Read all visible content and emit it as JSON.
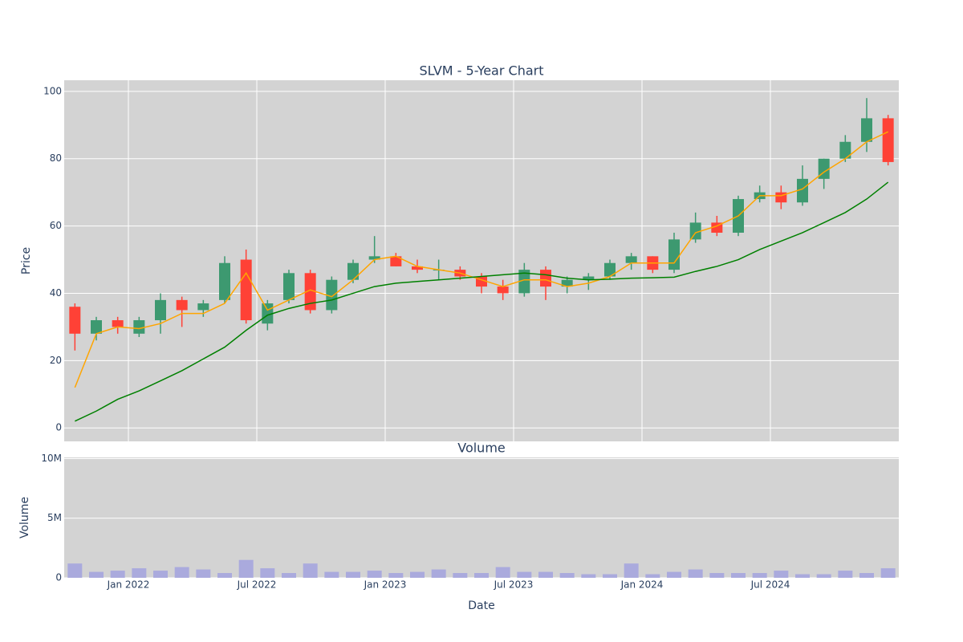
{
  "chart_data": [
    {
      "type": "candlestick",
      "title": "SLVM - 5-Year Chart",
      "ylabel": "Price",
      "x": [
        "2021-10",
        "2021-11",
        "2021-12",
        "2022-01",
        "2022-02",
        "2022-03",
        "2022-04",
        "2022-05",
        "2022-06",
        "2022-07",
        "2022-08",
        "2022-09",
        "2022-10",
        "2022-11",
        "2022-12",
        "2023-01",
        "2023-02",
        "2023-03",
        "2023-04",
        "2023-05",
        "2023-06",
        "2023-07",
        "2023-08",
        "2023-09",
        "2023-10",
        "2023-11",
        "2023-12",
        "2024-01",
        "2024-02",
        "2024-03",
        "2024-04",
        "2024-05",
        "2024-06",
        "2024-07",
        "2024-08",
        "2024-09",
        "2024-10",
        "2024-11",
        "2024-12"
      ],
      "open": [
        36,
        28,
        32,
        28,
        32,
        38,
        35,
        38,
        50,
        31,
        38,
        46,
        35,
        44,
        50,
        51,
        48,
        47,
        47,
        45,
        42,
        40,
        47,
        42,
        44,
        45,
        49,
        51,
        47,
        56,
        61,
        58,
        68,
        70,
        67,
        74,
        80,
        85,
        92
      ],
      "high": [
        37,
        33,
        33,
        33,
        40,
        39,
        38,
        51,
        53,
        38,
        47,
        47,
        45,
        50,
        57,
        52,
        50,
        50,
        48,
        46,
        44,
        49,
        48,
        45,
        46,
        50,
        52,
        51,
        58,
        64,
        63,
        69,
        72,
        72,
        78,
        80,
        87,
        98,
        93
      ],
      "low": [
        23,
        26,
        28,
        27,
        28,
        30,
        33,
        37,
        31,
        29,
        37,
        34,
        34,
        43,
        49,
        48,
        46,
        44,
        44,
        40,
        38,
        39,
        38,
        40,
        41,
        44,
        47,
        46,
        46,
        55,
        57,
        57,
        67,
        65,
        66,
        71,
        79,
        82,
        78
      ],
      "close": [
        28,
        32,
        30,
        32,
        38,
        35,
        37,
        49,
        32,
        37,
        46,
        35,
        44,
        49,
        51,
        48,
        47,
        47,
        45,
        42,
        40,
        47,
        42,
        44,
        45,
        49,
        51,
        47,
        56,
        61,
        58,
        68,
        70,
        67,
        74,
        80,
        85,
        92,
        79
      ],
      "increasing_color": "#3d9970",
      "decreasing_color": "#ff4136",
      "series": [
        {
          "color": "#ffa500",
          "values": [
            12,
            28,
            30,
            29.5,
            31,
            34,
            34,
            37,
            46,
            35,
            38,
            41,
            39,
            44,
            50,
            51,
            48,
            47,
            46,
            44,
            42,
            44,
            44,
            42,
            43,
            45,
            49,
            49,
            49,
            58,
            60,
            63,
            69,
            69,
            71,
            76,
            80,
            85,
            88
          ]
        },
        {
          "color": "#008000",
          "values": [
            2,
            5,
            8.5,
            11,
            14,
            17,
            20.5,
            24,
            29,
            33.5,
            35.5,
            37,
            38,
            40,
            42,
            43,
            43.5,
            44,
            44.5,
            45,
            45.5,
            46,
            45.5,
            44.5,
            44,
            44.2,
            44.5,
            44.6,
            44.8,
            46.5,
            48,
            50,
            53,
            55.5,
            58,
            61,
            64,
            68,
            73
          ]
        }
      ],
      "xlim": [
        "2021-10",
        "2025-01"
      ],
      "xticks": [
        "2022-01",
        "2022-07",
        "2023-01",
        "2023-07",
        "2024-01",
        "2024-07"
      ],
      "ylim": [
        -4,
        103.3
      ],
      "yticks": [
        0,
        20,
        40,
        60,
        80,
        100
      ],
      "grid": true
    },
    {
      "type": "bar",
      "title": "Volume",
      "xlabel": "Date",
      "ylabel": "Volume",
      "x": [
        "2021-10",
        "2021-11",
        "2021-12",
        "2022-01",
        "2022-02",
        "2022-03",
        "2022-04",
        "2022-05",
        "2022-06",
        "2022-07",
        "2022-08",
        "2022-09",
        "2022-10",
        "2022-11",
        "2022-12",
        "2023-01",
        "2023-02",
        "2023-03",
        "2023-04",
        "2023-05",
        "2023-06",
        "2023-07",
        "2023-08",
        "2023-09",
        "2023-10",
        "2023-11",
        "2023-12",
        "2024-01",
        "2024-02",
        "2024-03",
        "2024-04",
        "2024-05",
        "2024-06",
        "2024-07",
        "2024-08",
        "2024-09",
        "2024-10",
        "2024-11",
        "2024-12"
      ],
      "values": [
        1200000,
        500000,
        600000,
        800000,
        600000,
        900000,
        700000,
        400000,
        1500000,
        800000,
        400000,
        1200000,
        500000,
        500000,
        600000,
        400000,
        500000,
        700000,
        400000,
        400000,
        900000,
        500000,
        500000,
        400000,
        300000,
        300000,
        1200000,
        300000,
        500000,
        700000,
        400000,
        400000,
        400000,
        600000,
        300000,
        300000,
        600000,
        400000,
        800000
      ],
      "color": "#aaaadd",
      "xlim": [
        "2021-10",
        "2025-01"
      ],
      "xticks": [
        {
          "value": "2022-01",
          "label": "Jan 2022"
        },
        {
          "value": "2022-07",
          "label": "Jul 2022"
        },
        {
          "value": "2023-01",
          "label": "Jan 2023"
        },
        {
          "value": "2023-07",
          "label": "Jul 2023"
        },
        {
          "value": "2024-01",
          "label": "Jan 2024"
        },
        {
          "value": "2024-07",
          "label": "Jul 2024"
        }
      ],
      "ylim": [
        0,
        10100000
      ],
      "yticks": [
        {
          "value": 0,
          "label": "0"
        },
        {
          "value": 5000000,
          "label": "5M"
        },
        {
          "value": 10000000,
          "label": "10M"
        }
      ],
      "grid": true
    }
  ]
}
